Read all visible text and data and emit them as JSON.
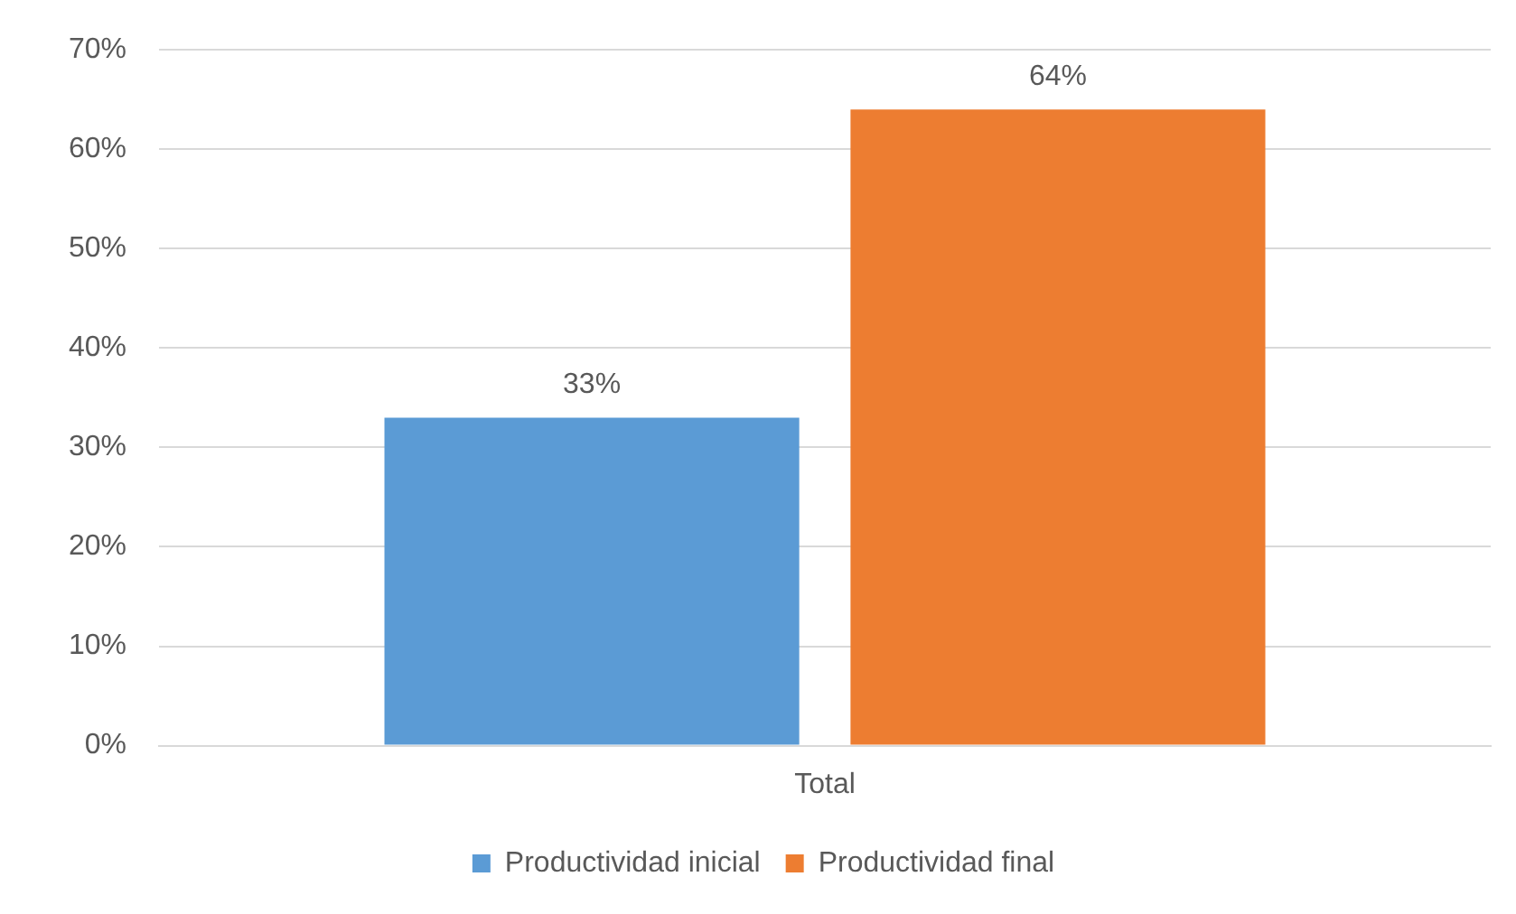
{
  "chart_data": {
    "type": "bar",
    "categories": [
      "Total"
    ],
    "series": [
      {
        "name": "Productividad inicial",
        "color": "#5b9bd5",
        "values": [
          33
        ],
        "value_labels": [
          "33%"
        ]
      },
      {
        "name": "Productividad final",
        "color": "#ed7d31",
        "values": [
          64
        ],
        "value_labels": [
          "64%"
        ]
      }
    ],
    "ylim": [
      0,
      70
    ],
    "yticks": [
      {
        "value": 0,
        "label": "0%"
      },
      {
        "value": 10,
        "label": "10%"
      },
      {
        "value": 20,
        "label": "20%"
      },
      {
        "value": 30,
        "label": "30%"
      },
      {
        "value": 40,
        "label": "40%"
      },
      {
        "value": 50,
        "label": "50%"
      },
      {
        "value": 60,
        "label": "60%"
      },
      {
        "value": 70,
        "label": "70%"
      }
    ],
    "grid": "y",
    "legend": "bottom"
  }
}
